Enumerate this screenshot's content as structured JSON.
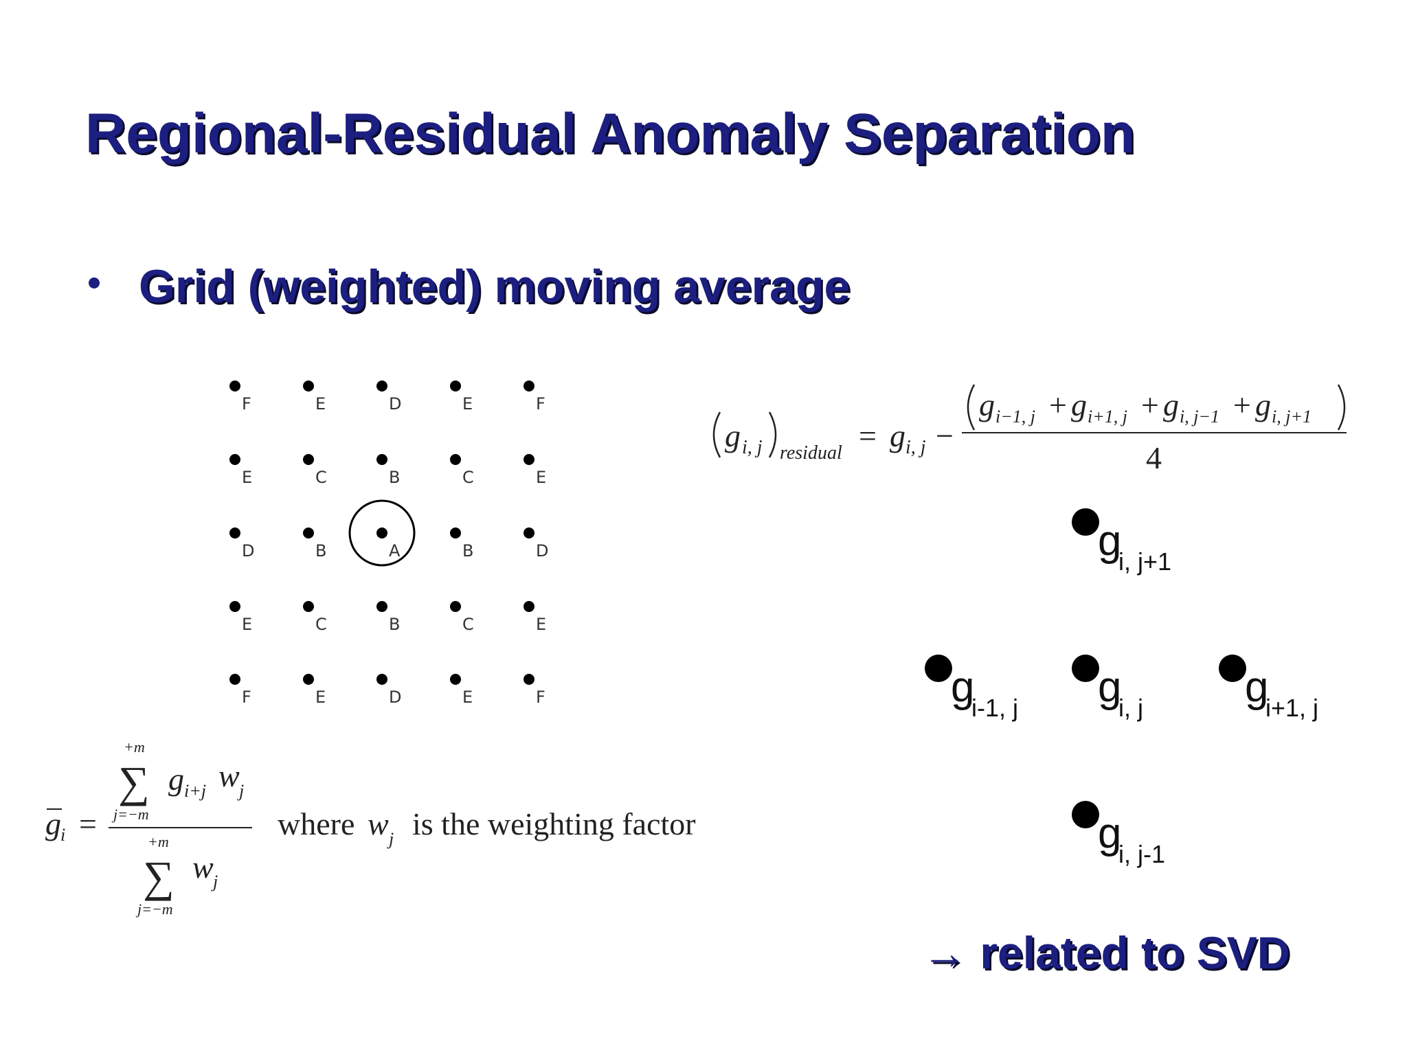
{
  "title": "Regional-Residual Anomaly Separation",
  "bullet": "Grid (weighted) moving average",
  "grid": {
    "rows": [
      [
        "F",
        "E",
        "D",
        "E",
        "F"
      ],
      [
        "E",
        "C",
        "B",
        "C",
        "E"
      ],
      [
        "D",
        "B",
        "A",
        "B",
        "D"
      ],
      [
        "E",
        "C",
        "B",
        "C",
        "E"
      ],
      [
        "F",
        "E",
        "D",
        "E",
        "F"
      ]
    ]
  },
  "residual_formula": {
    "lhs_var": "g",
    "lhs_sub": "i, j",
    "lhs_label": "residual",
    "equals": "=",
    "rhs_var": "g",
    "rhs_sub": "i, j",
    "minus": "−",
    "plus": "+",
    "numerator": [
      {
        "var": "g",
        "sub": "i−1, j"
      },
      {
        "var": "g",
        "sub": "i+1, j"
      },
      {
        "var": "g",
        "sub": "i, j−1"
      },
      {
        "var": "g",
        "sub": "i, j+1"
      }
    ],
    "denominator": "4"
  },
  "stencil": {
    "nodes": [
      {
        "var": "g",
        "sub": "i, j+1"
      },
      {
        "var": "g",
        "sub": "i-1, j"
      },
      {
        "var": "g",
        "sub": "i, j"
      },
      {
        "var": "g",
        "sub": "i+1, j"
      },
      {
        "var": "g",
        "sub": "i, j-1"
      }
    ]
  },
  "average_formula": {
    "bar_var": "g",
    "bar_sub": "i",
    "equals": "=",
    "sigma": "∑",
    "sum_upper": "+m",
    "sum_lower": "j=−m",
    "num_var1": "g",
    "num_sub1": "i+j",
    "num_var2": "w",
    "num_sub2": "j",
    "den_var": "w",
    "den_sub": "j",
    "where_text": "where",
    "where_var": "w",
    "where_sub": "j",
    "where_rest": "is the weighting factor"
  },
  "note": "→ related to SVD"
}
